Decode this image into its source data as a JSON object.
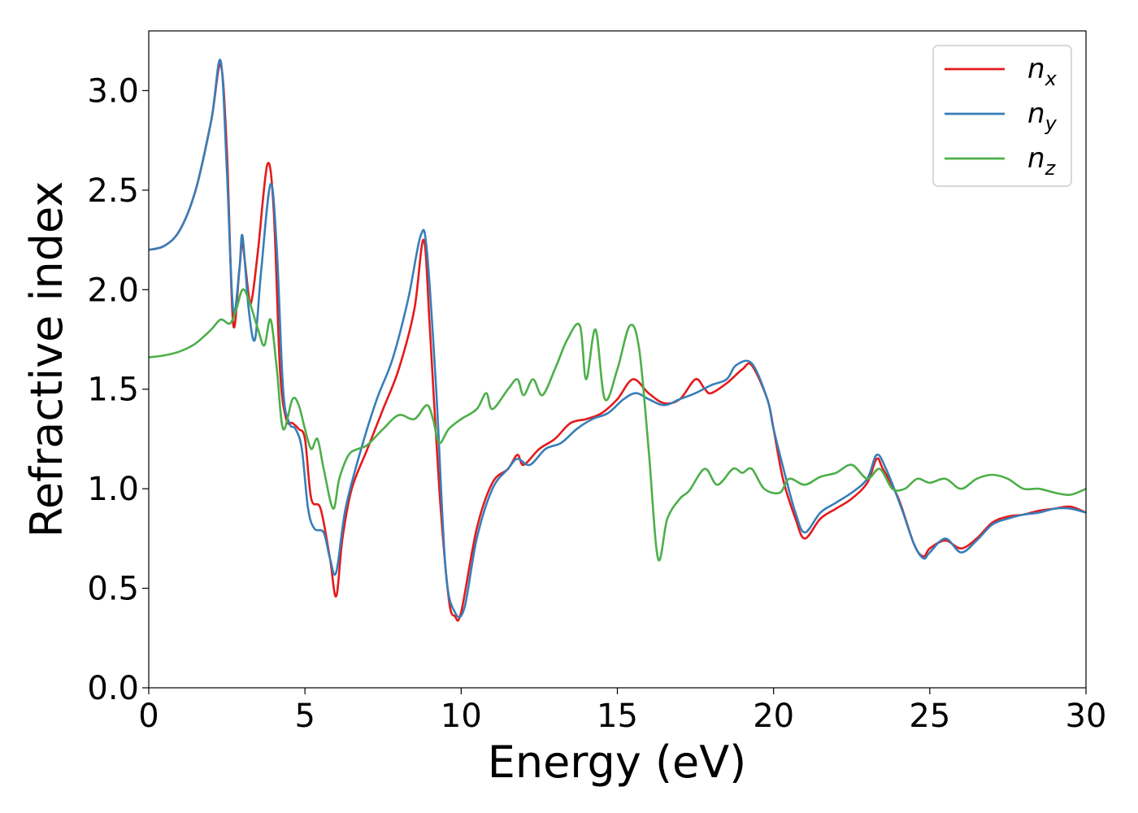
{
  "chart_data": {
    "type": "line",
    "xlabel": "Energy (eV)",
    "ylabel": "Refractive index",
    "xlim": [
      0,
      30
    ],
    "ylim": [
      0,
      3.3
    ],
    "xticks": [
      "0",
      "5",
      "10",
      "15",
      "20",
      "25",
      "30"
    ],
    "yticks": [
      "0.0",
      "0.5",
      "1.0",
      "1.5",
      "2.0",
      "2.5",
      "3.0"
    ],
    "grid": false,
    "legend_position": "top-right",
    "series": [
      {
        "name": "n",
        "subscript": "x",
        "color": "#e41a1c",
        "points": [
          [
            0,
            2.2
          ],
          [
            0.5,
            2.22
          ],
          [
            1,
            2.3
          ],
          [
            1.5,
            2.5
          ],
          [
            2,
            2.85
          ],
          [
            2.3,
            3.13
          ],
          [
            2.5,
            2.7
          ],
          [
            2.7,
            1.83
          ],
          [
            2.9,
            2.1
          ],
          [
            3.0,
            2.23
          ],
          [
            3.2,
            1.97
          ],
          [
            3.3,
            1.95
          ],
          [
            3.5,
            2.2
          ],
          [
            3.8,
            2.63
          ],
          [
            4.0,
            2.4
          ],
          [
            4.2,
            1.6
          ],
          [
            4.4,
            1.35
          ],
          [
            4.6,
            1.33
          ],
          [
            4.8,
            1.3
          ],
          [
            5.0,
            1.25
          ],
          [
            5.2,
            0.95
          ],
          [
            5.5,
            0.9
          ],
          [
            5.8,
            0.65
          ],
          [
            6.0,
            0.46
          ],
          [
            6.2,
            0.75
          ],
          [
            6.5,
            1.0
          ],
          [
            7.0,
            1.2
          ],
          [
            7.5,
            1.4
          ],
          [
            8.0,
            1.6
          ],
          [
            8.5,
            1.9
          ],
          [
            8.8,
            2.25
          ],
          [
            9.0,
            1.8
          ],
          [
            9.3,
            1.0
          ],
          [
            9.6,
            0.45
          ],
          [
            9.8,
            0.36
          ],
          [
            10.0,
            0.38
          ],
          [
            10.5,
            0.8
          ],
          [
            11.0,
            1.03
          ],
          [
            11.5,
            1.1
          ],
          [
            11.8,
            1.17
          ],
          [
            12.0,
            1.12
          ],
          [
            12.5,
            1.2
          ],
          [
            13.0,
            1.25
          ],
          [
            13.5,
            1.33
          ],
          [
            14.0,
            1.35
          ],
          [
            14.5,
            1.38
          ],
          [
            15.0,
            1.45
          ],
          [
            15.5,
            1.55
          ],
          [
            16.0,
            1.48
          ],
          [
            16.5,
            1.43
          ],
          [
            17.0,
            1.45
          ],
          [
            17.5,
            1.55
          ],
          [
            17.8,
            1.5
          ],
          [
            18.0,
            1.48
          ],
          [
            18.5,
            1.53
          ],
          [
            19.0,
            1.6
          ],
          [
            19.3,
            1.62
          ],
          [
            19.8,
            1.45
          ],
          [
            20.0,
            1.3
          ],
          [
            20.3,
            1.05
          ],
          [
            20.7,
            0.85
          ],
          [
            21.0,
            0.75
          ],
          [
            21.5,
            0.85
          ],
          [
            22.0,
            0.9
          ],
          [
            22.5,
            0.95
          ],
          [
            23.0,
            1.03
          ],
          [
            23.3,
            1.15
          ],
          [
            23.5,
            1.1
          ],
          [
            24.0,
            0.95
          ],
          [
            24.5,
            0.72
          ],
          [
            24.8,
            0.66
          ],
          [
            25.0,
            0.7
          ],
          [
            25.5,
            0.74
          ],
          [
            26.0,
            0.7
          ],
          [
            26.5,
            0.75
          ],
          [
            27.0,
            0.83
          ],
          [
            27.5,
            0.86
          ],
          [
            28.0,
            0.87
          ],
          [
            28.5,
            0.89
          ],
          [
            29.0,
            0.9
          ],
          [
            29.5,
            0.91
          ],
          [
            30.0,
            0.88
          ]
        ]
      },
      {
        "name": "n",
        "subscript": "y",
        "color": "#377eb8",
        "points": [
          [
            0,
            2.2
          ],
          [
            0.5,
            2.22
          ],
          [
            1,
            2.3
          ],
          [
            1.5,
            2.5
          ],
          [
            2,
            2.85
          ],
          [
            2.3,
            3.15
          ],
          [
            2.5,
            2.6
          ],
          [
            2.7,
            1.9
          ],
          [
            2.9,
            2.1
          ],
          [
            3.0,
            2.27
          ],
          [
            3.2,
            1.9
          ],
          [
            3.4,
            1.75
          ],
          [
            3.6,
            2.1
          ],
          [
            3.9,
            2.53
          ],
          [
            4.1,
            2.2
          ],
          [
            4.3,
            1.5
          ],
          [
            4.5,
            1.33
          ],
          [
            4.7,
            1.3
          ],
          [
            4.9,
            1.2
          ],
          [
            5.1,
            0.9
          ],
          [
            5.3,
            0.8
          ],
          [
            5.6,
            0.78
          ],
          [
            5.8,
            0.65
          ],
          [
            6.0,
            0.58
          ],
          [
            6.3,
            0.9
          ],
          [
            6.8,
            1.2
          ],
          [
            7.3,
            1.45
          ],
          [
            7.8,
            1.65
          ],
          [
            8.3,
            1.95
          ],
          [
            8.7,
            2.27
          ],
          [
            8.9,
            2.2
          ],
          [
            9.2,
            1.5
          ],
          [
            9.5,
            0.6
          ],
          [
            9.8,
            0.38
          ],
          [
            10.1,
            0.4
          ],
          [
            10.5,
            0.75
          ],
          [
            11.0,
            1.0
          ],
          [
            11.5,
            1.1
          ],
          [
            11.8,
            1.15
          ],
          [
            12.2,
            1.12
          ],
          [
            12.7,
            1.2
          ],
          [
            13.2,
            1.23
          ],
          [
            13.7,
            1.3
          ],
          [
            14.2,
            1.35
          ],
          [
            14.7,
            1.38
          ],
          [
            15.2,
            1.45
          ],
          [
            15.6,
            1.48
          ],
          [
            16.0,
            1.45
          ],
          [
            16.5,
            1.42
          ],
          [
            17.0,
            1.45
          ],
          [
            17.5,
            1.48
          ],
          [
            18.0,
            1.52
          ],
          [
            18.5,
            1.55
          ],
          [
            18.8,
            1.62
          ],
          [
            19.3,
            1.63
          ],
          [
            19.8,
            1.45
          ],
          [
            20.0,
            1.3
          ],
          [
            20.4,
            1.05
          ],
          [
            20.7,
            0.88
          ],
          [
            21.0,
            0.78
          ],
          [
            21.5,
            0.88
          ],
          [
            22.0,
            0.93
          ],
          [
            22.5,
            0.98
          ],
          [
            23.0,
            1.05
          ],
          [
            23.3,
            1.17
          ],
          [
            23.6,
            1.1
          ],
          [
            24.1,
            0.9
          ],
          [
            24.5,
            0.72
          ],
          [
            24.8,
            0.65
          ],
          [
            25.0,
            0.68
          ],
          [
            25.5,
            0.75
          ],
          [
            26.0,
            0.68
          ],
          [
            26.5,
            0.74
          ],
          [
            27.0,
            0.82
          ],
          [
            27.5,
            0.85
          ],
          [
            28.0,
            0.87
          ],
          [
            28.5,
            0.88
          ],
          [
            29.0,
            0.9
          ],
          [
            29.5,
            0.9
          ],
          [
            30.0,
            0.88
          ]
        ]
      },
      {
        "name": "n",
        "subscript": "z",
        "color": "#4daf4a",
        "points": [
          [
            0,
            1.66
          ],
          [
            0.5,
            1.67
          ],
          [
            1,
            1.69
          ],
          [
            1.5,
            1.73
          ],
          [
            2,
            1.8
          ],
          [
            2.3,
            1.85
          ],
          [
            2.6,
            1.83
          ],
          [
            2.8,
            1.9
          ],
          [
            3.0,
            2.0
          ],
          [
            3.2,
            1.95
          ],
          [
            3.5,
            1.8
          ],
          [
            3.7,
            1.72
          ],
          [
            3.9,
            1.85
          ],
          [
            4.1,
            1.6
          ],
          [
            4.3,
            1.3
          ],
          [
            4.6,
            1.45
          ],
          [
            4.8,
            1.42
          ],
          [
            5.0,
            1.3
          ],
          [
            5.2,
            1.2
          ],
          [
            5.4,
            1.25
          ],
          [
            5.6,
            1.1
          ],
          [
            5.9,
            0.9
          ],
          [
            6.1,
            1.05
          ],
          [
            6.4,
            1.17
          ],
          [
            6.7,
            1.2
          ],
          [
            7.0,
            1.22
          ],
          [
            7.5,
            1.3
          ],
          [
            8.0,
            1.37
          ],
          [
            8.5,
            1.35
          ],
          [
            8.9,
            1.42
          ],
          [
            9.1,
            1.35
          ],
          [
            9.3,
            1.23
          ],
          [
            9.6,
            1.3
          ],
          [
            10.0,
            1.35
          ],
          [
            10.5,
            1.4
          ],
          [
            10.8,
            1.48
          ],
          [
            11.0,
            1.4
          ],
          [
            11.5,
            1.5
          ],
          [
            11.8,
            1.55
          ],
          [
            12.0,
            1.47
          ],
          [
            12.3,
            1.55
          ],
          [
            12.6,
            1.47
          ],
          [
            13.0,
            1.6
          ],
          [
            13.4,
            1.75
          ],
          [
            13.8,
            1.82
          ],
          [
            14.0,
            1.55
          ],
          [
            14.3,
            1.8
          ],
          [
            14.6,
            1.45
          ],
          [
            15.0,
            1.6
          ],
          [
            15.4,
            1.82
          ],
          [
            15.7,
            1.7
          ],
          [
            16.0,
            1.2
          ],
          [
            16.3,
            0.65
          ],
          [
            16.6,
            0.85
          ],
          [
            17.0,
            0.95
          ],
          [
            17.3,
            0.99
          ],
          [
            17.8,
            1.1
          ],
          [
            18.2,
            1.02
          ],
          [
            18.7,
            1.1
          ],
          [
            19.0,
            1.08
          ],
          [
            19.3,
            1.1
          ],
          [
            19.7,
            1.0
          ],
          [
            20.2,
            0.98
          ],
          [
            20.5,
            1.05
          ],
          [
            21.0,
            1.02
          ],
          [
            21.5,
            1.06
          ],
          [
            22.0,
            1.08
          ],
          [
            22.5,
            1.12
          ],
          [
            23.0,
            1.05
          ],
          [
            23.4,
            1.1
          ],
          [
            23.8,
            1.0
          ],
          [
            24.2,
            1.0
          ],
          [
            24.6,
            1.05
          ],
          [
            25.0,
            1.03
          ],
          [
            25.5,
            1.05
          ],
          [
            26.0,
            1.0
          ],
          [
            26.5,
            1.05
          ],
          [
            27.0,
            1.07
          ],
          [
            27.5,
            1.05
          ],
          [
            28.0,
            1.0
          ],
          [
            28.5,
            1.0
          ],
          [
            29.0,
            0.98
          ],
          [
            29.5,
            0.97
          ],
          [
            30.0,
            1.0
          ]
        ]
      }
    ]
  }
}
